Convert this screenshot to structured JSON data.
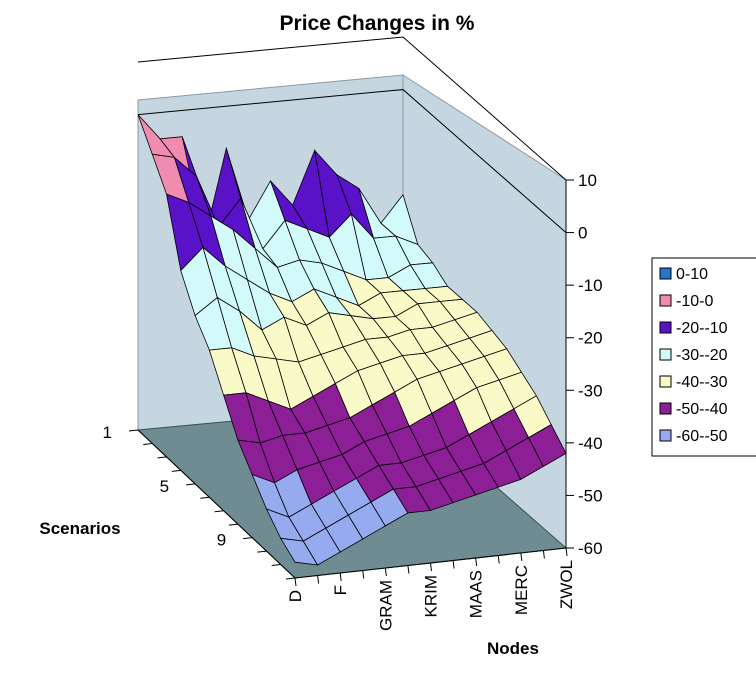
{
  "chart_data": {
    "type": "surface",
    "title": "Price Changes in %",
    "xlabel": "Nodes",
    "ylabel": "Scenarios",
    "zlabel": "",
    "z_range": [
      -60,
      10
    ],
    "z_ticks": [
      "10",
      "0",
      "-10",
      "-20",
      "-30",
      "-40",
      "-50",
      "-60"
    ],
    "node_ticks": [
      "D",
      "F",
      "GRAM",
      "KRIM",
      "MAAS",
      "MERC",
      "ZWOL"
    ],
    "scenario_ticks": [
      "1",
      "5",
      "9"
    ],
    "scenario_count": 12,
    "node_count": 13,
    "legend_position": "right",
    "bands": [
      {
        "label": "0-10",
        "color": "#1f78c8"
      },
      {
        "label": "-10-0",
        "color": "#f08cb0"
      },
      {
        "label": "-20--10",
        "color": "#5a12c8"
      },
      {
        "label": "-30--20",
        "color": "#d2fafa"
      },
      {
        "label": "-40--30",
        "color": "#fafac8"
      },
      {
        "label": "-50--40",
        "color": "#8c1e96"
      },
      {
        "label": "-60--50",
        "color": "#96aaf0"
      }
    ],
    "values": [
      [
        0,
        -5,
        -5,
        -25,
        -8,
        -22,
        -15,
        -20,
        -10,
        -15,
        -18,
        -25,
        -20
      ],
      [
        -5,
        -6,
        -10,
        -20,
        -15,
        -25,
        -20,
        -22,
        -24,
        -20,
        -25,
        -25,
        -27
      ],
      [
        -10,
        -12,
        -15,
        -18,
        -22,
        -26,
        -25,
        -26,
        -28,
        -30,
        -30,
        -28,
        -28
      ],
      [
        -22,
        -18,
        -22,
        -25,
        -28,
        -30,
        -28,
        -30,
        -32,
        -30,
        -30,
        -30,
        -30
      ],
      [
        -28,
        -25,
        -28,
        -32,
        -30,
        -32,
        -30,
        -31,
        -32,
        -32,
        -30,
        -30,
        -30
      ],
      [
        -32,
        -32,
        -34,
        -35,
        -36,
        -35,
        -34,
        -33,
        -33,
        -32,
        -32,
        -31,
        -30
      ],
      [
        -38,
        -38,
        -40,
        -42,
        -40,
        -38,
        -36,
        -35,
        -34,
        -34,
        -33,
        -32,
        -31
      ],
      [
        -44,
        -45,
        -44,
        -44,
        -43,
        -42,
        -40,
        -38,
        -36,
        -35,
        -34,
        -33,
        -32
      ],
      [
        -48,
        -50,
        -48,
        -47,
        -46,
        -44,
        -43,
        -42,
        -40,
        -38,
        -36,
        -35,
        -34
      ],
      [
        -52,
        -54,
        -52,
        -50,
        -48,
        -46,
        -46,
        -45,
        -44,
        -42,
        -40,
        -38,
        -36
      ],
      [
        -55,
        -56,
        -54,
        -52,
        -50,
        -48,
        -48,
        -47,
        -46,
        -45,
        -43,
        -41,
        -39
      ],
      [
        -57,
        -58,
        -56,
        -54,
        -52,
        -50,
        -50,
        -49,
        -48,
        -47,
        -46,
        -44,
        -42
      ]
    ]
  }
}
